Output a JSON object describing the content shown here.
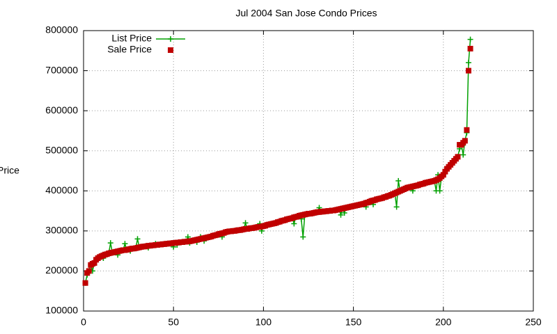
{
  "chart_data": {
    "type": "line",
    "title": "Jul 2004 San Jose Condo Prices",
    "y_label": "Price",
    "xlim": [
      0,
      250
    ],
    "xticks": [
      0,
      50,
      100,
      150,
      200,
      250
    ],
    "ylim": [
      100000,
      800000
    ],
    "yticks": [
      100000,
      200000,
      300000,
      400000,
      500000,
      600000,
      700000,
      800000
    ],
    "grid": true,
    "legend": "top-left",
    "x": [
      1,
      2,
      3,
      4,
      5,
      6,
      7,
      8,
      9,
      10,
      11,
      12,
      13,
      14,
      15,
      16,
      17,
      18,
      19,
      20,
      21,
      22,
      23,
      24,
      25,
      26,
      27,
      28,
      29,
      30,
      31,
      32,
      33,
      34,
      35,
      36,
      37,
      38,
      39,
      40,
      41,
      42,
      43,
      44,
      45,
      46,
      47,
      48,
      49,
      50,
      51,
      52,
      53,
      54,
      55,
      56,
      57,
      58,
      59,
      60,
      61,
      62,
      63,
      64,
      65,
      66,
      67,
      68,
      69,
      70,
      71,
      72,
      73,
      74,
      75,
      76,
      77,
      78,
      79,
      80,
      81,
      82,
      83,
      84,
      85,
      86,
      87,
      88,
      89,
      90,
      91,
      92,
      93,
      94,
      95,
      96,
      97,
      98,
      99,
      100,
      101,
      102,
      103,
      104,
      105,
      106,
      107,
      108,
      109,
      110,
      111,
      112,
      113,
      114,
      115,
      116,
      117,
      118,
      119,
      120,
      121,
      122,
      123,
      124,
      125,
      126,
      127,
      128,
      129,
      130,
      131,
      132,
      133,
      134,
      135,
      136,
      137,
      138,
      139,
      140,
      141,
      142,
      143,
      144,
      145,
      146,
      147,
      148,
      149,
      150,
      151,
      152,
      153,
      154,
      155,
      156,
      157,
      158,
      159,
      160,
      161,
      162,
      163,
      164,
      165,
      166,
      167,
      168,
      169,
      170,
      171,
      172,
      173,
      174,
      175,
      176,
      177,
      178,
      179,
      180,
      181,
      182,
      183,
      184,
      185,
      186,
      187,
      188,
      189,
      190,
      191,
      192,
      193,
      194,
      195,
      196,
      197,
      198,
      199,
      200,
      201,
      202,
      203,
      204,
      205,
      206,
      207,
      208,
      209,
      210,
      211,
      212,
      213,
      214,
      215
    ],
    "series": [
      {
        "name": "List Price",
        "color": "#00a000",
        "style": "linespoints",
        "values": [
          170000,
          190000,
          200000,
          215000,
          200000,
          220000,
          228000,
          232000,
          235000,
          237000,
          232000,
          241000,
          242000,
          244000,
          270000,
          246000,
          247000,
          248000,
          240000,
          250000,
          251000,
          252000,
          268000,
          253000,
          254000,
          250000,
          256000,
          256000,
          257000,
          280000,
          259000,
          260000,
          261000,
          261000,
          262000,
          258000,
          263000,
          264000,
          264000,
          268000,
          265000,
          266000,
          266000,
          267000,
          267000,
          268000,
          268000,
          269000,
          269000,
          260000,
          270000,
          265000,
          271000,
          272000,
          272000,
          273000,
          273000,
          285000,
          270000,
          275000,
          276000,
          277000,
          272000,
          279000,
          285000,
          281000,
          275000,
          283000,
          284000,
          285000,
          286000,
          288000,
          289000,
          290000,
          292000,
          293000,
          285000,
          295000,
          297000,
          298000,
          299000,
          299000,
          300000,
          300000,
          301000,
          302000,
          302000,
          303000,
          304000,
          320000,
          305000,
          306000,
          307000,
          307000,
          308000,
          309000,
          310000,
          318000,
          300000,
          312000,
          313000,
          315000,
          316000,
          317000,
          318000,
          319000,
          320000,
          322000,
          323000,
          325000,
          326000,
          327000,
          329000,
          330000,
          331000,
          332000,
          318000,
          335000,
          336000,
          338000,
          330000,
          285000,
          341000,
          342000,
          343000,
          343000,
          344000,
          345000,
          346000,
          347000,
          358000,
          348000,
          348000,
          349000,
          349000,
          350000,
          350000,
          351000,
          351000,
          352000,
          353000,
          354000,
          340000,
          356000,
          345000,
          358000,
          359000,
          360000,
          361000,
          362000,
          363000,
          364000,
          365000,
          366000,
          367000,
          368000,
          360000,
          371000,
          373000,
          375000,
          366000,
          377000,
          379000,
          380000,
          381000,
          382000,
          384000,
          385000,
          387000,
          388000,
          390000,
          392000,
          394000,
          360000,
          425000,
          400000,
          402000,
          404000,
          406000,
          408000,
          409000,
          410000,
          400000,
          412000,
          413000,
          414000,
          416000,
          417000,
          418000,
          420000,
          421000,
          422000,
          423000,
          424000,
          425000,
          400000,
          440000,
          400000,
          436000,
          440000,
          448000,
          455000,
          460000,
          465000,
          470000,
          475000,
          480000,
          485000,
          505000,
          515000,
          490000,
          525000,
          545000,
          720000,
          778000
        ]
      },
      {
        "name": "Sale Price",
        "color": "#c00000",
        "style": "points",
        "values": [
          170000,
          195000,
          200000,
          215000,
          218000,
          220000,
          228000,
          232000,
          235000,
          237000,
          239000,
          241000,
          242000,
          244000,
          245000,
          246000,
          247000,
          248000,
          249000,
          250000,
          251000,
          252000,
          252000,
          253000,
          254000,
          255000,
          256000,
          256000,
          257000,
          258000,
          259000,
          260000,
          261000,
          261000,
          262000,
          263000,
          263000,
          264000,
          264000,
          265000,
          265000,
          266000,
          266000,
          267000,
          267000,
          268000,
          268000,
          269000,
          269000,
          270000,
          270000,
          271000,
          271000,
          272000,
          272000,
          273000,
          273000,
          274000,
          274000,
          275000,
          276000,
          277000,
          278000,
          279000,
          280000,
          281000,
          282000,
          283000,
          284000,
          285000,
          286000,
          288000,
          289000,
          290000,
          292000,
          293000,
          294000,
          295000,
          297000,
          298000,
          299000,
          299000,
          300000,
          300000,
          301000,
          302000,
          302000,
          303000,
          304000,
          305000,
          305000,
          306000,
          307000,
          307000,
          308000,
          309000,
          310000,
          310000,
          311000,
          312000,
          313000,
          315000,
          316000,
          317000,
          318000,
          319000,
          320000,
          322000,
          323000,
          325000,
          326000,
          327000,
          329000,
          330000,
          331000,
          332000,
          334000,
          335000,
          336000,
          338000,
          339000,
          340000,
          341000,
          342000,
          343000,
          343000,
          344000,
          345000,
          346000,
          347000,
          347000,
          348000,
          348000,
          349000,
          349000,
          350000,
          350000,
          351000,
          351000,
          352000,
          353000,
          354000,
          355000,
          356000,
          357000,
          358000,
          359000,
          360000,
          361000,
          362000,
          363000,
          364000,
          365000,
          366000,
          367000,
          368000,
          370000,
          371000,
          373000,
          375000,
          376000,
          377000,
          379000,
          380000,
          381000,
          382000,
          384000,
          385000,
          387000,
          388000,
          390000,
          392000,
          394000,
          396000,
          398000,
          400000,
          402000,
          404000,
          406000,
          408000,
          409000,
          410000,
          411000,
          412000,
          413000,
          414000,
          416000,
          417000,
          418000,
          420000,
          421000,
          422000,
          423000,
          424000,
          425000,
          427000,
          429000,
          432000,
          436000,
          440000,
          448000,
          455000,
          460000,
          465000,
          470000,
          475000,
          480000,
          485000,
          515000,
          515000,
          520000,
          525000,
          552000,
          700000,
          755000
        ]
      }
    ]
  }
}
